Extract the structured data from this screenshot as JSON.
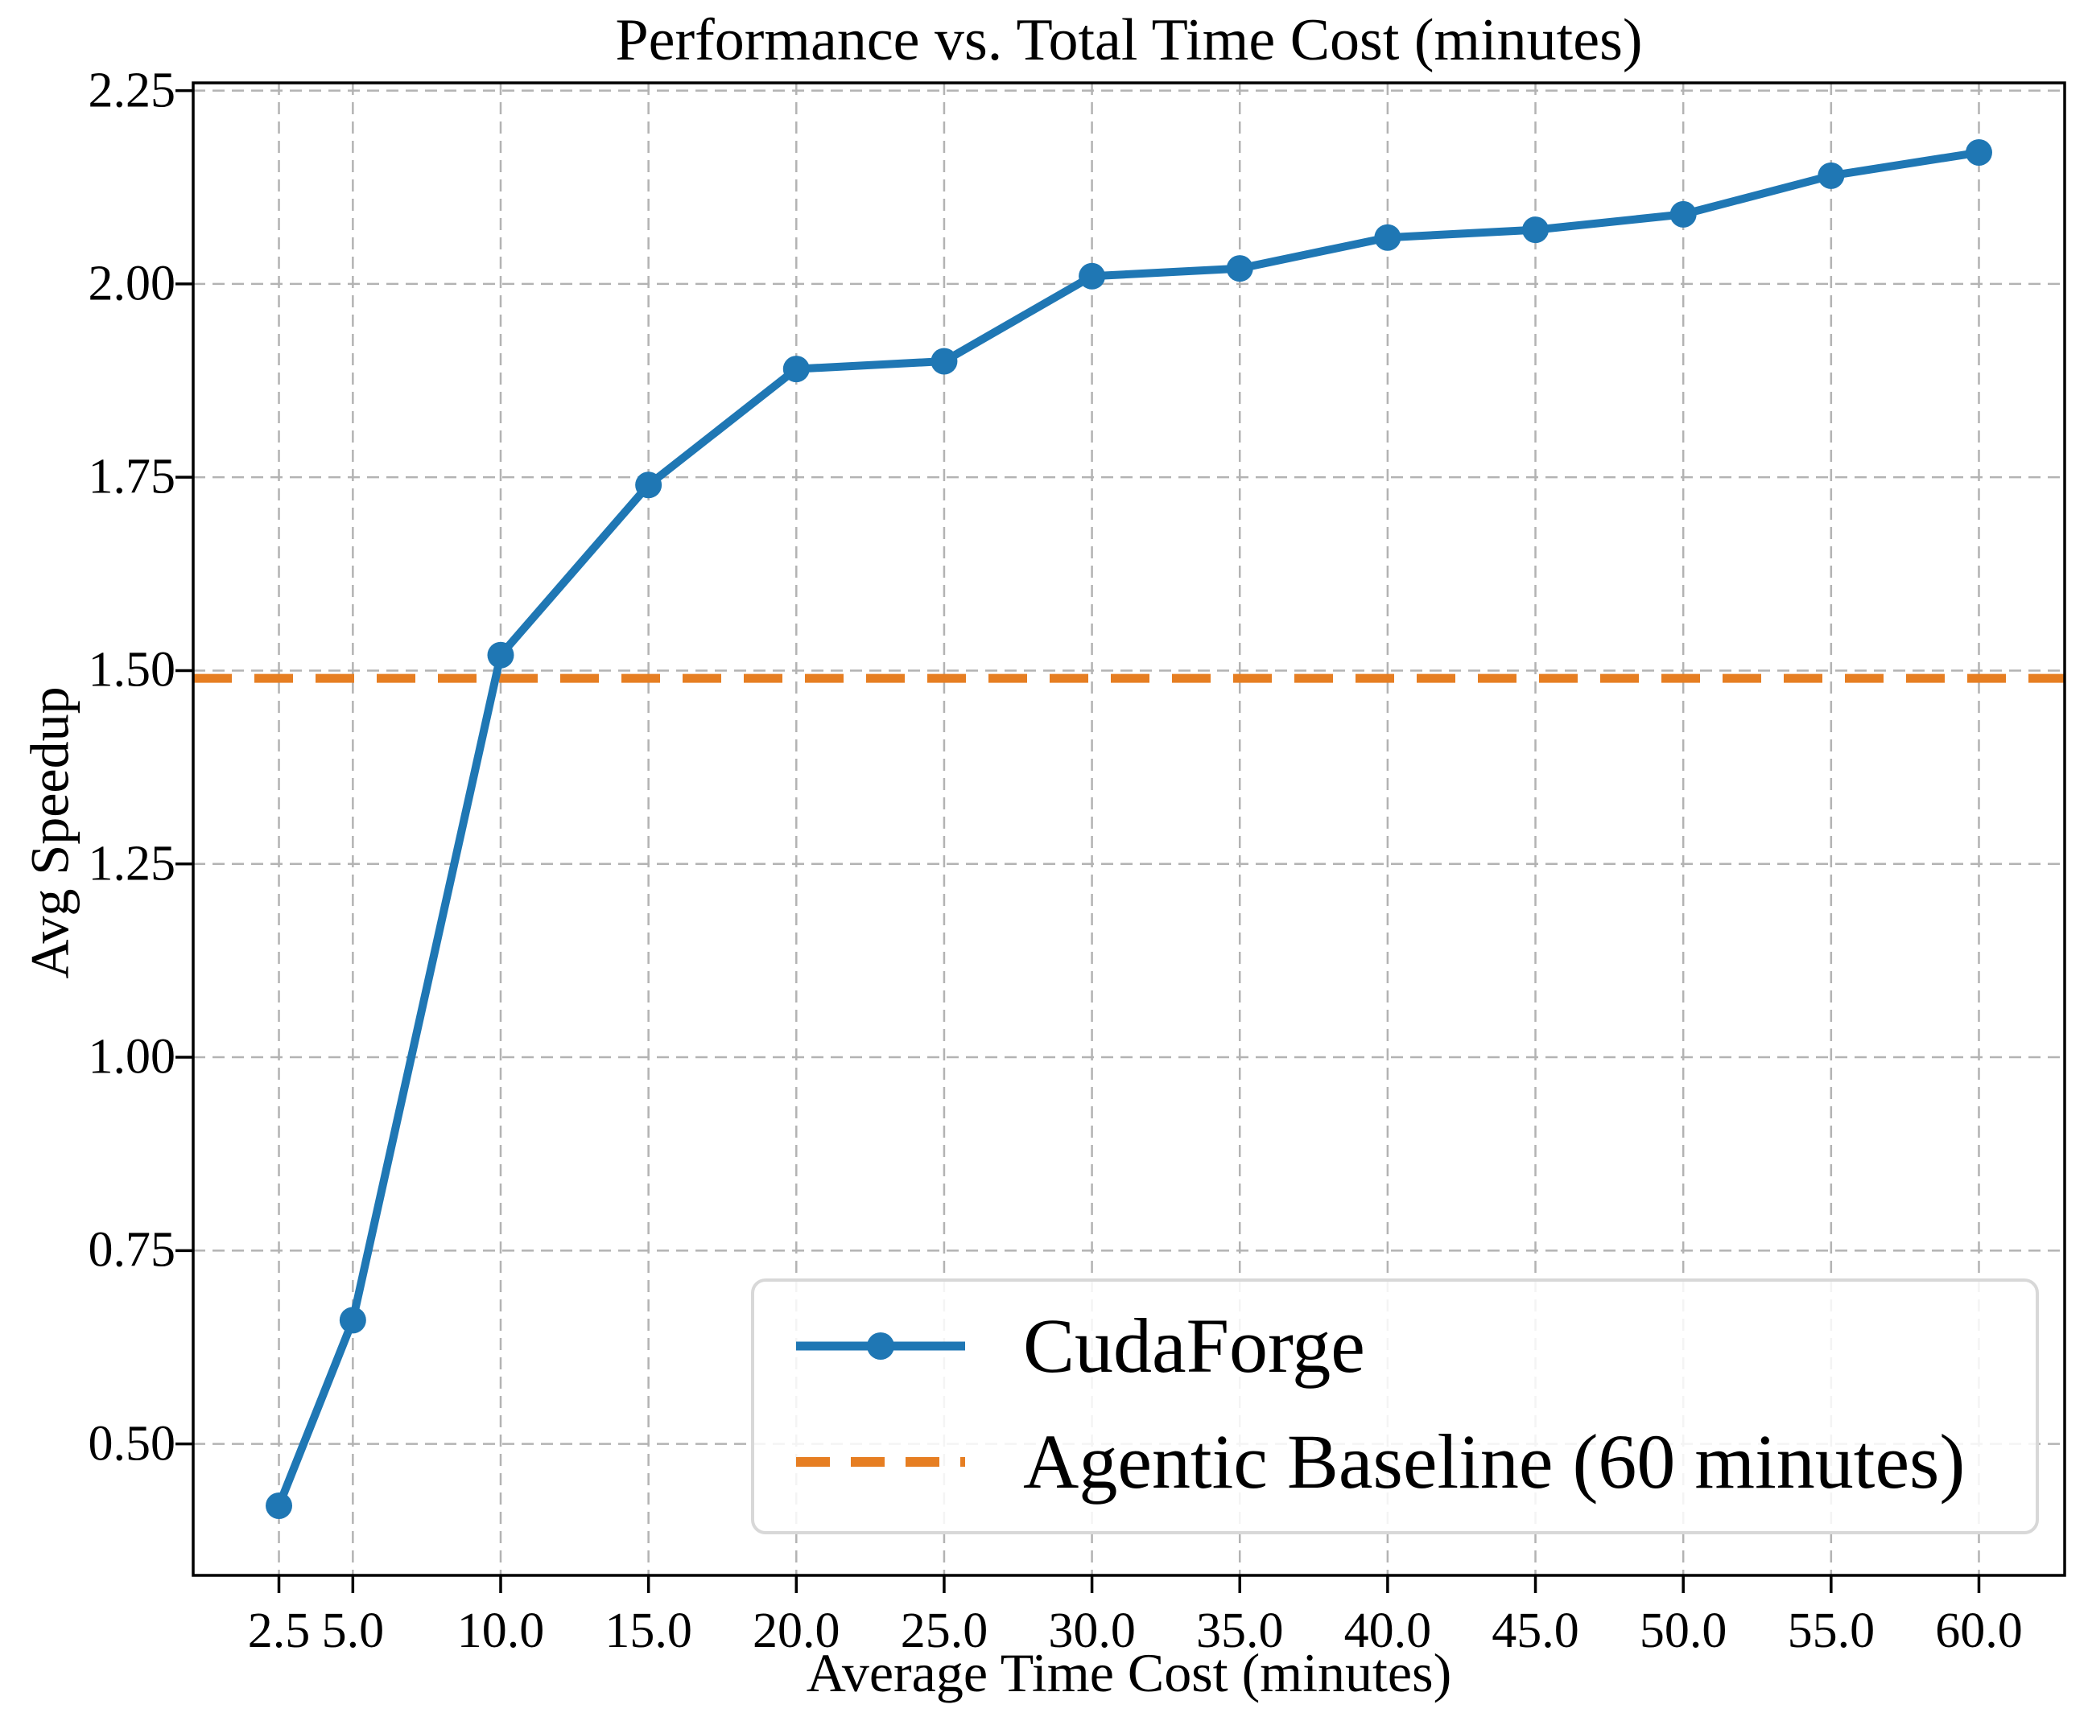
{
  "chart_data": {
    "type": "line",
    "title": "Performance vs. Total Time Cost (minutes)",
    "xlabel": "Average Time Cost (minutes)",
    "ylabel": "Avg Speedup",
    "x": [
      2.5,
      5.0,
      10.0,
      15.0,
      20.0,
      25.0,
      30.0,
      35.0,
      40.0,
      45.0,
      50.0,
      55.0,
      60.0
    ],
    "series": [
      {
        "name": "CudaForge",
        "values": [
          0.42,
          0.66,
          1.52,
          1.74,
          1.89,
          1.9,
          2.01,
          2.02,
          2.06,
          2.07,
          2.09,
          2.14,
          2.17
        ],
        "color": "#1f77b4",
        "line_style": "solid",
        "marker": "circle"
      }
    ],
    "baseline": {
      "label": "Agentic Baseline (60 minutes)",
      "value": 1.49,
      "color": "#e67e22",
      "line_style": "dashed"
    },
    "x_tick_labels": [
      "2.5",
      "5.0",
      "10.0",
      "15.0",
      "20.0",
      "25.0",
      "30.0",
      "35.0",
      "40.0",
      "45.0",
      "50.0",
      "55.0",
      "60.0"
    ],
    "y_ticks": [
      0.5,
      0.75,
      1.0,
      1.25,
      1.5,
      1.75,
      2.0,
      2.25
    ],
    "y_tick_labels": [
      "0.50",
      "0.75",
      "1.00",
      "1.25",
      "1.50",
      "1.75",
      "2.00",
      "2.25"
    ],
    "xlim": [
      -0.4,
      62.9
    ],
    "ylim": [
      0.33,
      2.26
    ],
    "grid": true,
    "grid_style": "dashed",
    "grid_color": "#b3b3b3",
    "legend_position": "lower right"
  }
}
